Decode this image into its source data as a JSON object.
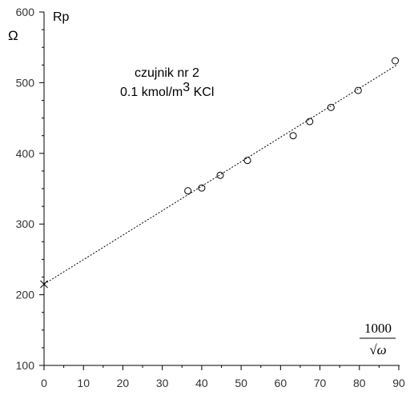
{
  "chart_data": {
    "type": "scatter",
    "title": "",
    "ylabel_name": "Rp",
    "ylabel_unit": "Ω",
    "xlabel_numerator": "1000",
    "xlabel_denominator": "√ω",
    "annotation_line1": "czujnik nr 2",
    "annotation_line2_prefix": "0.1 kmol/m",
    "annotation_line2_sup": "3",
    "annotation_line2_suffix": " KCl",
    "xlim": [
      0,
      90
    ],
    "ylim": [
      100,
      600
    ],
    "x_ticks": [
      0,
      10,
      20,
      30,
      40,
      50,
      60,
      70,
      80,
      90
    ],
    "y_ticks": [
      100,
      200,
      300,
      400,
      500,
      600
    ],
    "series": [
      {
        "marker": "circle",
        "points": [
          [
            36.5,
            347
          ],
          [
            40.0,
            351
          ],
          [
            44.7,
            369
          ],
          [
            51.6,
            390
          ],
          [
            63.2,
            425
          ],
          [
            67.4,
            445
          ],
          [
            72.8,
            465
          ],
          [
            79.7,
            489
          ],
          [
            89.1,
            531
          ]
        ]
      }
    ],
    "intercept_point": {
      "marker": "x",
      "x": 0,
      "y": 215
    },
    "fit_line": {
      "style": "dashed",
      "x": [
        0,
        89.5
      ],
      "y": [
        215,
        525
      ]
    }
  }
}
